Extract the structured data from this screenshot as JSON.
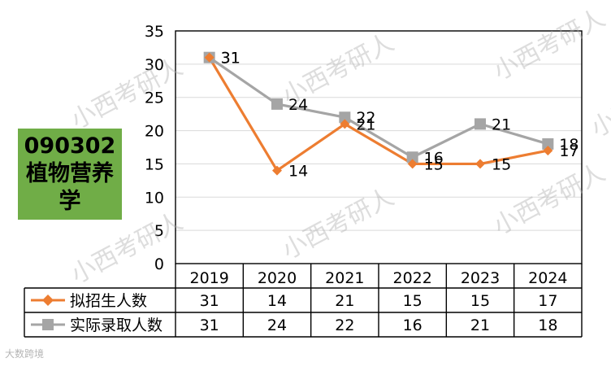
{
  "subject": {
    "code": "090302",
    "name_line1": "植物营养",
    "name_line2": "学"
  },
  "watermark": {
    "text": "小西考研人",
    "corner": "大数跨境"
  },
  "colors": {
    "planned": "#ed7d31",
    "actual": "#a5a5a5",
    "label_bg": "#70ad47"
  },
  "chart_data": {
    "type": "line",
    "categories": [
      "2019",
      "2020",
      "2021",
      "2022",
      "2023",
      "2024"
    ],
    "ylim": [
      0,
      35
    ],
    "yticks": [
      0,
      5,
      10,
      15,
      20,
      25,
      30,
      35
    ],
    "grid": true,
    "legend": "data-table-left",
    "series": [
      {
        "name": "拟招生人数",
        "values": [
          31,
          14,
          21,
          15,
          15,
          17
        ],
        "marker": "diamond"
      },
      {
        "name": "实际录取人数",
        "values": [
          31,
          24,
          22,
          16,
          21,
          18
        ],
        "marker": "square"
      }
    ]
  }
}
